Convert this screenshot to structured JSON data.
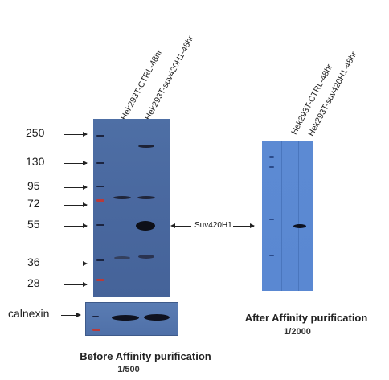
{
  "blot_left": {
    "lanes": [
      "Hek293T-CTRL-48hr",
      "Hek293T-suv420H1-48hr"
    ],
    "markers": [
      "250",
      "130",
      "95",
      "72",
      "55",
      "36",
      "28"
    ],
    "loading_control": "calnexin",
    "caption": "Before Affinity purification",
    "dilution": "1/500"
  },
  "target_label": "Suv420H1",
  "blot_right": {
    "lanes": [
      "Hek293T-CTRL-48hr",
      "Hek293T-suv420H1-48hr"
    ],
    "caption": "After Affinity purification",
    "dilution": "1/2000"
  },
  "colors": {
    "membrane_left": "#4a69a0",
    "membrane_right": "#5a88d2",
    "band": "#111111",
    "ladder_red": "#b83a3a"
  }
}
